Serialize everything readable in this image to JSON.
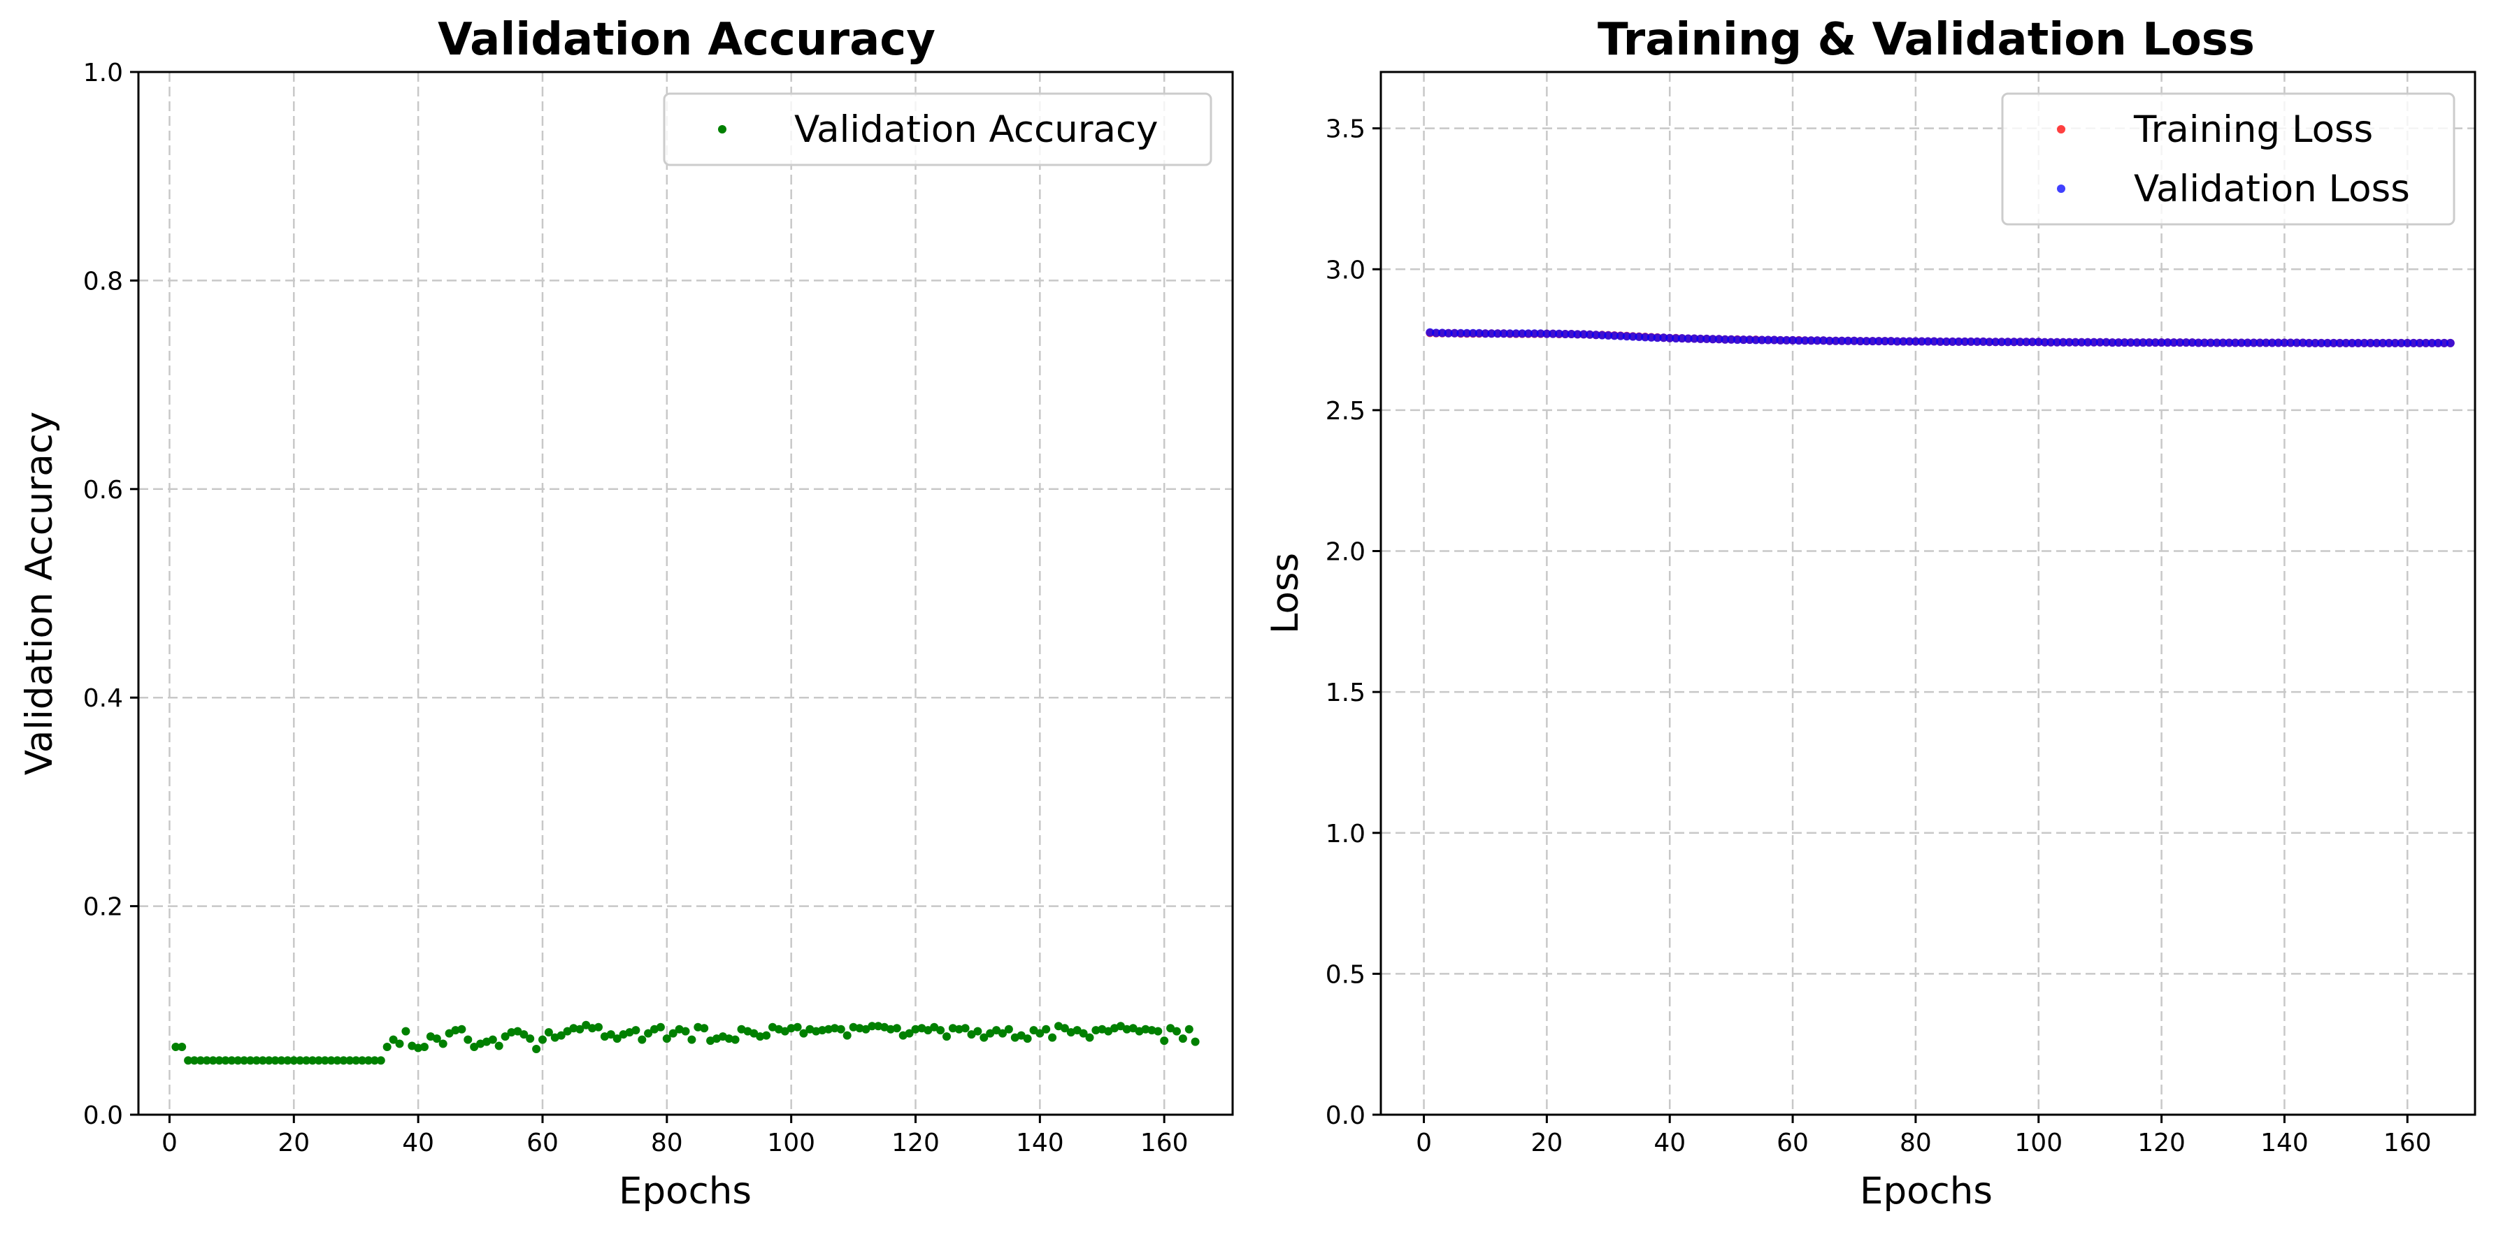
{
  "chart_data": [
    {
      "type": "scatter",
      "title": "Validation Accuracy",
      "xlabel": "Epochs",
      "ylabel": "Validation Accuracy",
      "xlim": [
        -5,
        171
      ],
      "ylim": [
        0,
        1.0
      ],
      "xticks": [
        0,
        20,
        40,
        60,
        80,
        100,
        120,
        140,
        160
      ],
      "yticks": [
        0.0,
        0.2,
        0.4,
        0.6,
        0.8,
        1.0
      ],
      "ytick_decimals": 1,
      "grid": true,
      "legend": "top-right",
      "series": [
        {
          "name": "Validation Accuracy",
          "color": "#008000",
          "x_start": 1,
          "values": [
            0.065,
            0.065,
            0.052,
            0.052,
            0.052,
            0.052,
            0.052,
            0.052,
            0.052,
            0.052,
            0.052,
            0.052,
            0.052,
            0.052,
            0.052,
            0.052,
            0.052,
            0.052,
            0.052,
            0.052,
            0.052,
            0.052,
            0.052,
            0.052,
            0.052,
            0.052,
            0.052,
            0.052,
            0.052,
            0.052,
            0.052,
            0.052,
            0.052,
            0.052,
            0.065,
            0.072,
            0.068,
            0.08,
            0.066,
            0.064,
            0.065,
            0.075,
            0.073,
            0.068,
            0.078,
            0.081,
            0.082,
            0.072,
            0.065,
            0.068,
            0.07,
            0.072,
            0.066,
            0.075,
            0.079,
            0.08,
            0.077,
            0.073,
            0.063,
            0.072,
            0.079,
            0.074,
            0.076,
            0.08,
            0.083,
            0.082,
            0.086,
            0.083,
            0.084,
            0.075,
            0.077,
            0.073,
            0.077,
            0.079,
            0.081,
            0.072,
            0.078,
            0.082,
            0.084,
            0.073,
            0.078,
            0.082,
            0.08,
            0.072,
            0.084,
            0.083,
            0.071,
            0.073,
            0.075,
            0.073,
            0.072,
            0.082,
            0.08,
            0.078,
            0.075,
            0.076,
            0.084,
            0.082,
            0.08,
            0.083,
            0.084,
            0.078,
            0.082,
            0.08,
            0.081,
            0.082,
            0.083,
            0.082,
            0.076,
            0.084,
            0.083,
            0.082,
            0.085,
            0.085,
            0.084,
            0.082,
            0.083,
            0.076,
            0.078,
            0.082,
            0.083,
            0.081,
            0.084,
            0.081,
            0.075,
            0.083,
            0.082,
            0.083,
            0.077,
            0.08,
            0.074,
            0.078,
            0.081,
            0.078,
            0.082,
            0.074,
            0.076,
            0.073,
            0.081,
            0.078,
            0.082,
            0.074,
            0.085,
            0.083,
            0.079,
            0.081,
            0.078,
            0.074,
            0.081,
            0.082,
            0.08,
            0.083,
            0.085,
            0.082,
            0.083,
            0.08,
            0.082,
            0.081,
            0.08,
            0.071,
            0.083,
            0.08,
            0.073,
            0.082,
            0.07
          ]
        }
      ]
    },
    {
      "type": "scatter",
      "title": "Training & Validation Loss",
      "xlabel": "Epochs",
      "ylabel": "Loss",
      "xlim": [
        -7,
        171
      ],
      "ylim": [
        0,
        3.7
      ],
      "xticks": [
        0,
        20,
        40,
        60,
        80,
        100,
        120,
        140,
        160
      ],
      "yticks": [
        0.0,
        0.5,
        1.0,
        1.5,
        2.0,
        2.5,
        3.0,
        3.5
      ],
      "ytick_decimals": 1,
      "grid": true,
      "legend": "top-right",
      "series": [
        {
          "name": "Training Loss",
          "color": "#ff0000",
          "x_start": 1,
          "values": [
            2.774,
            2.773,
            2.773,
            2.773,
            2.773,
            2.772,
            2.772,
            2.772,
            2.772,
            2.772,
            2.772,
            2.772,
            2.772,
            2.771,
            2.771,
            2.771,
            2.771,
            2.771,
            2.771,
            2.771,
            2.771,
            2.77,
            2.77,
            2.77,
            2.769,
            2.769,
            2.768,
            2.767,
            2.767,
            2.766,
            2.765,
            2.764,
            2.763,
            2.762,
            2.761,
            2.76,
            2.759,
            2.758,
            2.757,
            2.756,
            2.756,
            2.755,
            2.754,
            2.754,
            2.753,
            2.753,
            2.752,
            2.752,
            2.751,
            2.751,
            2.751,
            2.75,
            2.75,
            2.75,
            2.749,
            2.749,
            2.749,
            2.748,
            2.748,
            2.748,
            2.748,
            2.747,
            2.747,
            2.747,
            2.747,
            2.746,
            2.746,
            2.746,
            2.746,
            2.746,
            2.745,
            2.745,
            2.745,
            2.745,
            2.745,
            2.745,
            2.744,
            2.744,
            2.744,
            2.744,
            2.744,
            2.744,
            2.744,
            2.743,
            2.743,
            2.743,
            2.743,
            2.743,
            2.743,
            2.743,
            2.743,
            2.742,
            2.742,
            2.742,
            2.742,
            2.742,
            2.742,
            2.742,
            2.742,
            2.742,
            2.741,
            2.741,
            2.741,
            2.741,
            2.741,
            2.741,
            2.741,
            2.741,
            2.741,
            2.741,
            2.741,
            2.74,
            2.74,
            2.74,
            2.74,
            2.74,
            2.74,
            2.74,
            2.74,
            2.74,
            2.74,
            2.74,
            2.74,
            2.74,
            2.74,
            2.739,
            2.739,
            2.739,
            2.739,
            2.739,
            2.739,
            2.739,
            2.739,
            2.739,
            2.739,
            2.739,
            2.739,
            2.739,
            2.739,
            2.739,
            2.739,
            2.739,
            2.739,
            2.738,
            2.738,
            2.738,
            2.738,
            2.738,
            2.738,
            2.738,
            2.738,
            2.738,
            2.738,
            2.738,
            2.738,
            2.738,
            2.738,
            2.738,
            2.738,
            2.738,
            2.738,
            2.738,
            2.738,
            2.738,
            2.738,
            2.738,
            2.738
          ]
        },
        {
          "name": "Validation Loss",
          "color": "#0000ff",
          "x_start": 1,
          "values": [
            2.776,
            2.774,
            2.774,
            2.773,
            2.773,
            2.773,
            2.773,
            2.773,
            2.773,
            2.772,
            2.772,
            2.772,
            2.772,
            2.772,
            2.772,
            2.772,
            2.772,
            2.772,
            2.772,
            2.771,
            2.771,
            2.771,
            2.77,
            2.77,
            2.769,
            2.769,
            2.768,
            2.767,
            2.766,
            2.765,
            2.764,
            2.763,
            2.762,
            2.761,
            2.76,
            2.759,
            2.758,
            2.757,
            2.757,
            2.756,
            2.755,
            2.755,
            2.754,
            2.754,
            2.753,
            2.753,
            2.752,
            2.752,
            2.751,
            2.751,
            2.75,
            2.75,
            2.75,
            2.749,
            2.749,
            2.749,
            2.749,
            2.748,
            2.748,
            2.748,
            2.747,
            2.747,
            2.747,
            2.747,
            2.747,
            2.746,
            2.746,
            2.746,
            2.746,
            2.746,
            2.745,
            2.745,
            2.745,
            2.745,
            2.745,
            2.745,
            2.744,
            2.744,
            2.744,
            2.744,
            2.744,
            2.744,
            2.744,
            2.743,
            2.743,
            2.743,
            2.743,
            2.743,
            2.743,
            2.743,
            2.743,
            2.742,
            2.742,
            2.742,
            2.742,
            2.742,
            2.742,
            2.742,
            2.742,
            2.742,
            2.741,
            2.741,
            2.741,
            2.741,
            2.741,
            2.741,
            2.741,
            2.741,
            2.741,
            2.741,
            2.741,
            2.74,
            2.74,
            2.74,
            2.74,
            2.74,
            2.74,
            2.74,
            2.74,
            2.74,
            2.74,
            2.74,
            2.74,
            2.74,
            2.74,
            2.739,
            2.739,
            2.739,
            2.739,
            2.739,
            2.739,
            2.739,
            2.739,
            2.739,
            2.739,
            2.739,
            2.739,
            2.739,
            2.739,
            2.739,
            2.739,
            2.739,
            2.739,
            2.738,
            2.738,
            2.738,
            2.738,
            2.738,
            2.738,
            2.738,
            2.738,
            2.738,
            2.738,
            2.738,
            2.738,
            2.738,
            2.738,
            2.738,
            2.738,
            2.738,
            2.738,
            2.738,
            2.738,
            2.738,
            2.738,
            2.738,
            2.738
          ]
        }
      ]
    }
  ]
}
